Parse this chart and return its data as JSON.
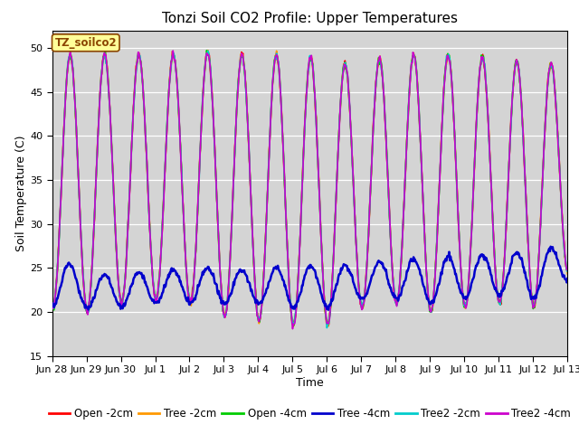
{
  "title": "Tonzi Soil CO2 Profile: Upper Temperatures",
  "xlabel": "Time",
  "ylabel": "Soil Temperature (C)",
  "ylim": [
    15,
    52
  ],
  "yticks": [
    15,
    20,
    25,
    30,
    35,
    40,
    45,
    50
  ],
  "plot_bg_color": "#d4d4d4",
  "watermark": "TZ_soilco2",
  "series": [
    {
      "label": "Open -2cm",
      "color": "#ff0000"
    },
    {
      "label": "Tree -2cm",
      "color": "#ff9900"
    },
    {
      "label": "Open -4cm",
      "color": "#00cc00"
    },
    {
      "label": "Tree -4cm",
      "color": "#0000cc"
    },
    {
      "label": "Tree2 -2cm",
      "color": "#00cccc"
    },
    {
      "label": "Tree2 -4cm",
      "color": "#cc00cc"
    }
  ],
  "xtick_labels": [
    "Jun 28",
    "Jun 29",
    "Jun 30",
    "Jul 1",
    "Jul 2",
    "Jul 3",
    "Jul 4",
    "Jul 5",
    "Jul 6",
    "Jul 7",
    "Jul 8",
    "Jul 9",
    "Jul 10",
    "Jul 11",
    "Jul 12",
    "Jul 13"
  ],
  "num_days": 16,
  "points_per_day": 48,
  "day_peaks_high": [
    49.5,
    49.0,
    49.5,
    49.0,
    49.5,
    49.5,
    49.0,
    49.5,
    48.5,
    48.0,
    49.5,
    49.0,
    49.5,
    48.5,
    48.5,
    48.0
  ],
  "day_troughs_high": [
    20.5,
    20.0,
    21.0,
    21.5,
    21.0,
    19.5,
    19.0,
    18.5,
    18.5,
    20.5,
    21.0,
    20.0,
    20.5,
    21.0,
    20.5,
    24.5
  ],
  "day_peaks_blue": [
    27.0,
    24.0,
    24.5,
    24.5,
    25.0,
    25.0,
    24.5,
    25.5,
    25.0,
    25.5,
    26.0,
    26.0,
    26.5,
    26.5,
    27.0,
    27.5
  ],
  "day_troughs_blue": [
    20.5,
    20.5,
    20.5,
    21.0,
    21.0,
    21.0,
    21.0,
    20.5,
    20.5,
    21.5,
    21.5,
    21.0,
    21.5,
    22.0,
    21.5,
    23.5
  ],
  "title_fontsize": 11,
  "label_fontsize": 9,
  "tick_fontsize": 8,
  "legend_fontsize": 8.5,
  "linewidth": 1.2,
  "blue_linewidth": 1.8
}
